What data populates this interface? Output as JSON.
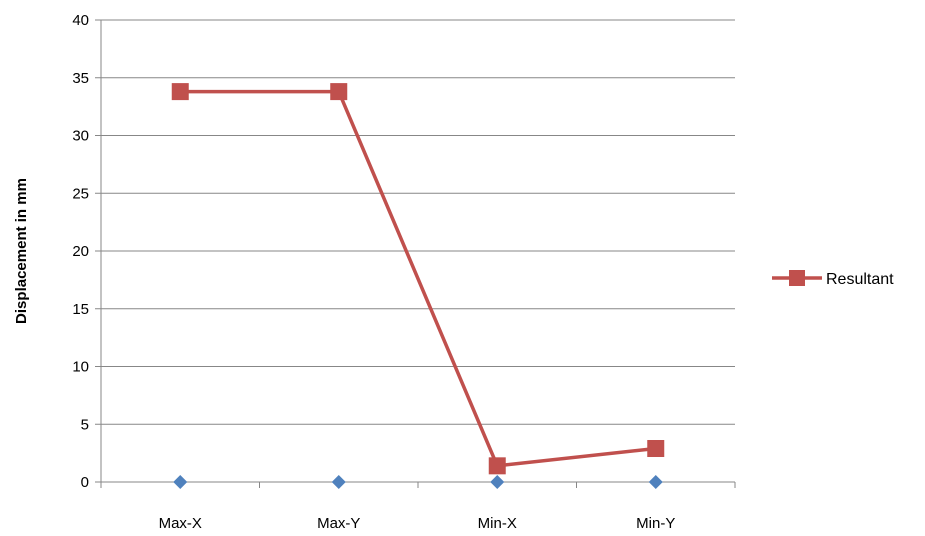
{
  "chart_data": {
    "type": "line",
    "title": "",
    "xlabel": "",
    "ylabel": "Displacement  in mm",
    "categories": [
      "Max-X",
      "Max-Y",
      "Min-X",
      "Min-Y"
    ],
    "ylim": [
      0,
      40
    ],
    "yticks": [
      0,
      5,
      10,
      15,
      20,
      25,
      30,
      35,
      40
    ],
    "grid": true,
    "legend_position": "right",
    "series": [
      {
        "name": "",
        "values": [
          0,
          0,
          0,
          0
        ],
        "color": "#4f81bd",
        "marker": "diamond",
        "line": false
      },
      {
        "name": "Resultant",
        "values": [
          33.8,
          33.8,
          1.4,
          2.9
        ],
        "color": "#c0504d",
        "marker": "square",
        "line": true
      }
    ]
  }
}
